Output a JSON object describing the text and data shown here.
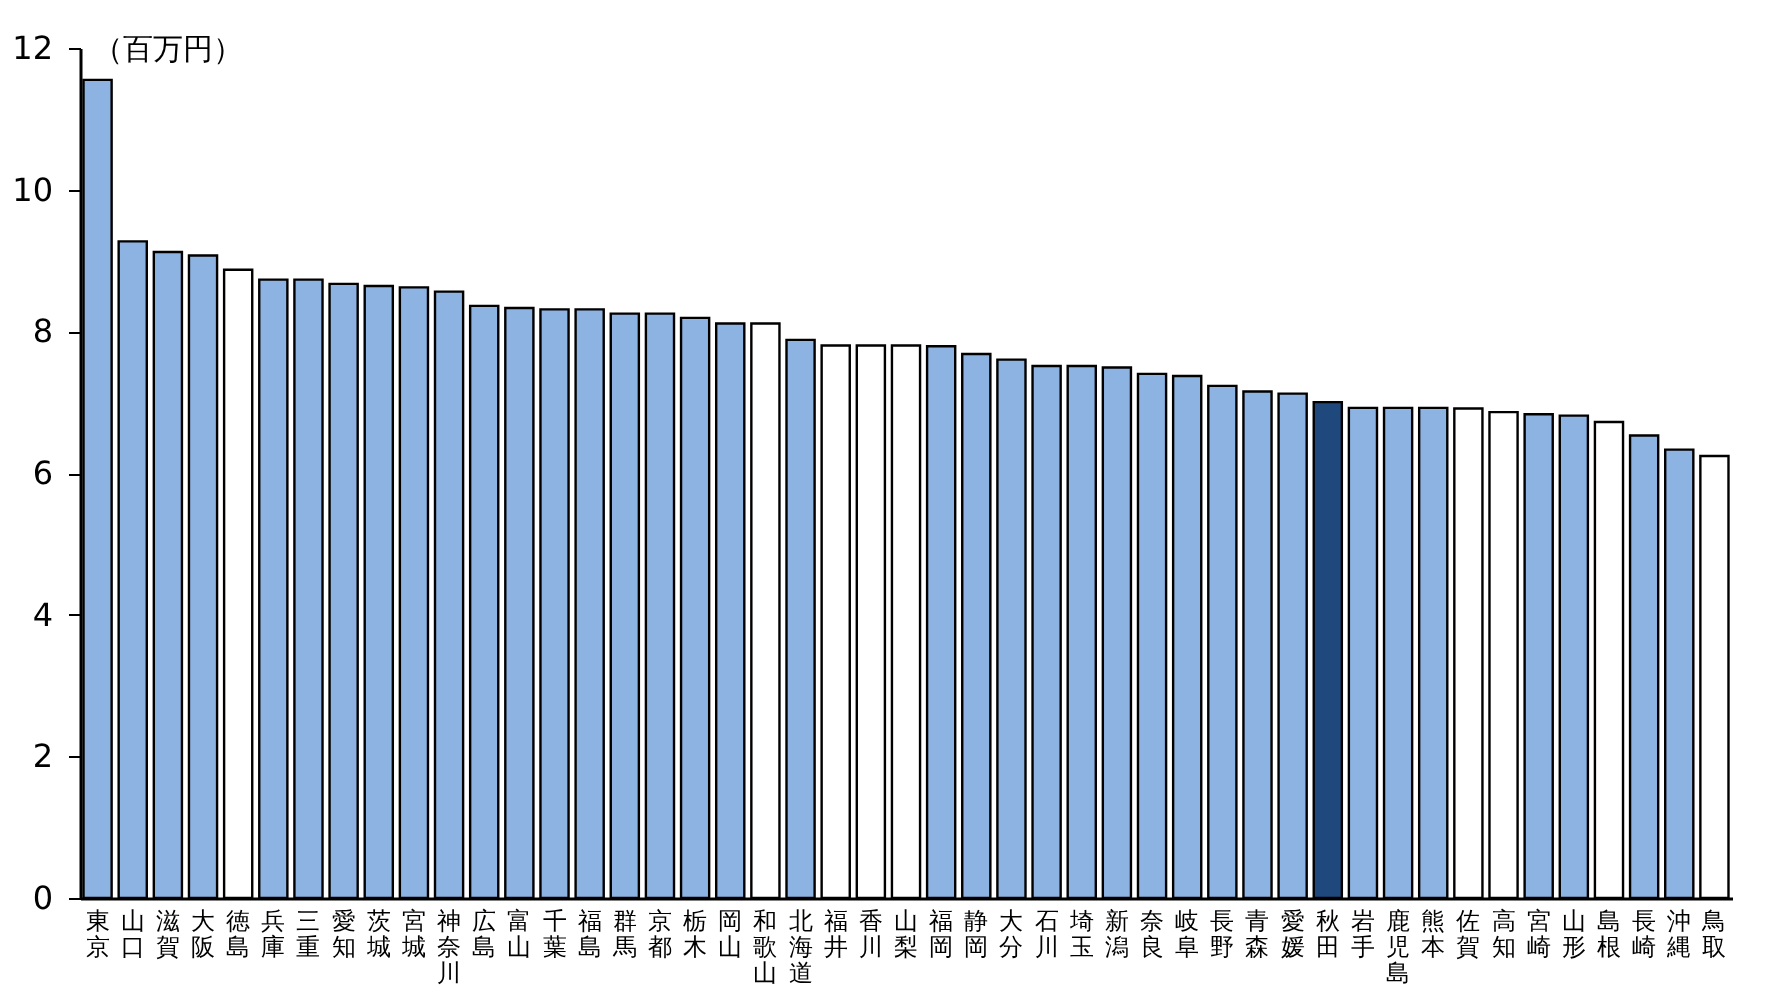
{
  "chart_data": {
    "type": "bar",
    "ylabel": "（百万円）",
    "categories": [
      "東京",
      "山口",
      "滋賀",
      "大阪",
      "徳島",
      "兵庫",
      "三重",
      "愛知",
      "茨城",
      "宮城",
      "神奈川",
      "広島",
      "富山",
      "千葉",
      "福島",
      "群馬",
      "京都",
      "栃木",
      "岡山",
      "和歌山",
      "北海道",
      "福井",
      "香川",
      "山梨",
      "福岡",
      "静岡",
      "大分",
      "石川",
      "埼玉",
      "新潟",
      "奈良",
      "岐阜",
      "長野",
      "青森",
      "愛媛",
      "秋田",
      "岩手",
      "鹿児島",
      "熊本",
      "佐賀",
      "高知",
      "宮崎",
      "山形",
      "島根",
      "長崎",
      "沖縄",
      "鳥取"
    ],
    "values": [
      11.55,
      9.27,
      9.12,
      9.07,
      8.87,
      8.73,
      8.73,
      8.67,
      8.64,
      8.62,
      8.56,
      8.36,
      8.33,
      8.31,
      8.31,
      8.25,
      8.25,
      8.19,
      8.11,
      8.11,
      7.88,
      7.8,
      7.8,
      7.8,
      7.79,
      7.68,
      7.6,
      7.51,
      7.51,
      7.49,
      7.4,
      7.37,
      7.23,
      7.15,
      7.12,
      7.0,
      6.92,
      6.92,
      6.92,
      6.91,
      6.86,
      6.83,
      6.81,
      6.72,
      6.53,
      6.33,
      6.24
    ],
    "colors": [
      "#8db3e2",
      "#8db3e2",
      "#8db3e2",
      "#8db3e2",
      "#ffffff",
      "#8db3e2",
      "#8db3e2",
      "#8db3e2",
      "#8db3e2",
      "#8db3e2",
      "#8db3e2",
      "#8db3e2",
      "#8db3e2",
      "#8db3e2",
      "#8db3e2",
      "#8db3e2",
      "#8db3e2",
      "#8db3e2",
      "#8db3e2",
      "#ffffff",
      "#8db3e2",
      "#ffffff",
      "#ffffff",
      "#ffffff",
      "#8db3e2",
      "#8db3e2",
      "#8db3e2",
      "#8db3e2",
      "#8db3e2",
      "#8db3e2",
      "#8db3e2",
      "#8db3e2",
      "#8db3e2",
      "#8db3e2",
      "#8db3e2",
      "#1f497d",
      "#8db3e2",
      "#8db3e2",
      "#8db3e2",
      "#ffffff",
      "#ffffff",
      "#8db3e2",
      "#8db3e2",
      "#ffffff",
      "#8db3e2",
      "#8db3e2",
      "#ffffff"
    ],
    "ylim": [
      0,
      12
    ],
    "yticks": [
      0,
      2,
      4,
      6,
      8,
      10,
      12
    ],
    "grid": false
  }
}
